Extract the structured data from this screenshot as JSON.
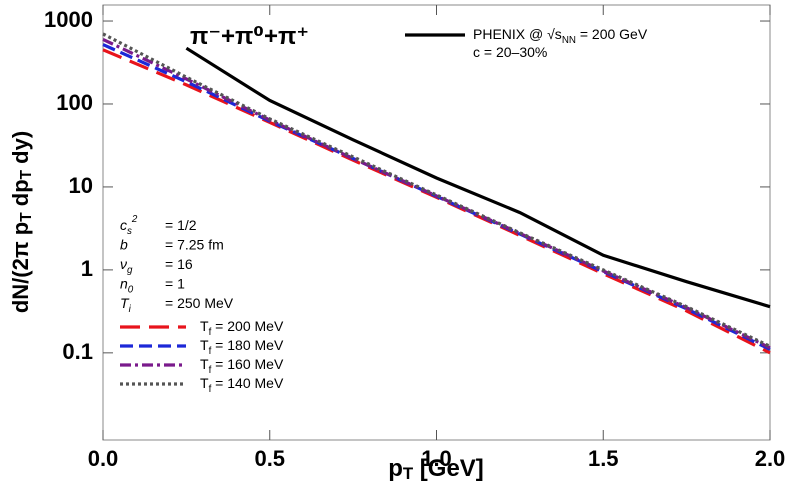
{
  "chart_data": {
    "type": "line",
    "title": "π⁻+π⁰+π⁺",
    "xlabel": "p_{T} [GeV]",
    "ylabel": "dN/(2π p_{T} dp_{T} dy)",
    "log_y": true,
    "xlim": [
      0,
      2
    ],
    "ylim": [
      0.0089,
      1560
    ],
    "xticks": [
      {
        "value": 0,
        "label": "0.0"
      },
      0.5,
      {
        "value": 1,
        "label": "1.0"
      },
      1.5,
      {
        "value": 2,
        "label": "2.0"
      }
    ],
    "yticks": [
      0.1,
      1,
      10,
      100,
      1000
    ],
    "annotations": [
      {
        "symbol": "c_{s}^{2}",
        "value": "= 1/2"
      },
      {
        "symbol": "b",
        "value": "= 7.25 fm"
      },
      {
        "symbol": "ν_{g}",
        "value": "= 16"
      },
      {
        "symbol": "n_{0}",
        "value": "= 1"
      },
      {
        "symbol": "T_{i}",
        "value": "= 250 MeV"
      }
    ],
    "data_note": "c = 20–30%",
    "series": [
      {
        "name": "PHENIX @ √s_{NN} = 200 GeV",
        "color": "#000000",
        "style": "solid",
        "x": [
          0.25,
          0.5,
          0.75,
          1.0,
          1.25,
          1.5,
          1.75,
          2.0
        ],
        "values": [
          470,
          110,
          37,
          12.8,
          4.9,
          1.5,
          0.72,
          0.36
        ]
      },
      {
        "name": "T_{f} = 200 MeV",
        "color": "#e8141c",
        "style": "longdash",
        "x": [
          0,
          0.25,
          0.5,
          0.75,
          1.0,
          1.25,
          1.5,
          1.75,
          2.0
        ],
        "values": [
          450,
          170,
          60,
          21,
          7.5,
          2.6,
          0.9,
          0.32,
          0.1
        ]
      },
      {
        "name": "T_{f} = 180 MeV",
        "color": "#1c28d8",
        "style": "dash",
        "x": [
          0,
          0.25,
          0.5,
          0.75,
          1.0,
          1.25,
          1.5,
          1.75,
          2.0
        ],
        "values": [
          520,
          185,
          62,
          22,
          7.7,
          2.7,
          0.95,
          0.34,
          0.11
        ]
      },
      {
        "name": "T_{f} = 160 MeV",
        "color": "#7a1a8c",
        "style": "dashdot",
        "x": [
          0,
          0.25,
          0.5,
          0.75,
          1.0,
          1.25,
          1.5,
          1.75,
          2.0
        ],
        "values": [
          600,
          200,
          64,
          22,
          7.8,
          2.75,
          0.97,
          0.35,
          0.115
        ]
      },
      {
        "name": "T_{f} = 140 MeV",
        "color": "#555555",
        "style": "dot",
        "x": [
          0,
          0.25,
          0.5,
          0.75,
          1.0,
          1.25,
          1.5,
          1.75,
          2.0
        ],
        "values": [
          700,
          210,
          66,
          23,
          8.0,
          2.8,
          1.0,
          0.36,
          0.12
        ]
      }
    ]
  }
}
